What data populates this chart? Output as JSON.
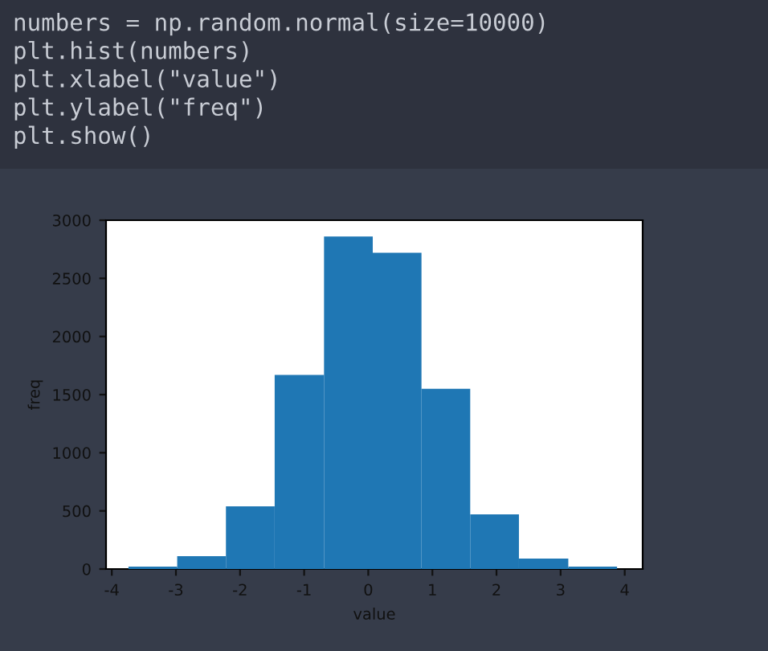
{
  "chart_data": {
    "type": "histogram",
    "xlabel": "value",
    "ylabel": "freq",
    "annotations": [
      "numbers = np.random.normal(size=10000)",
      "plt.hist(numbers)",
      "plt.xlabel(\"value\")",
      "plt.ylabel(\"freq\")",
      "plt.show()"
    ],
    "bins": [
      -3.74,
      -2.98,
      -2.22,
      -1.46,
      -0.69,
      0.07,
      0.83,
      1.59,
      2.35,
      3.12,
      3.88
    ],
    "values": [
      20,
      110,
      540,
      1670,
      2860,
      2720,
      1550,
      470,
      90,
      20
    ],
    "color": "#1f77b4",
    "xlim": [
      -4.09,
      4.28
    ],
    "xticks": [
      -4,
      -3,
      -2,
      -1,
      0,
      1,
      2,
      3,
      4
    ],
    "ylim": [
      0,
      3000
    ],
    "yticks": [
      0,
      500,
      1000,
      1500,
      2000,
      2500,
      3000
    ],
    "grid": false,
    "legend": false
  }
}
